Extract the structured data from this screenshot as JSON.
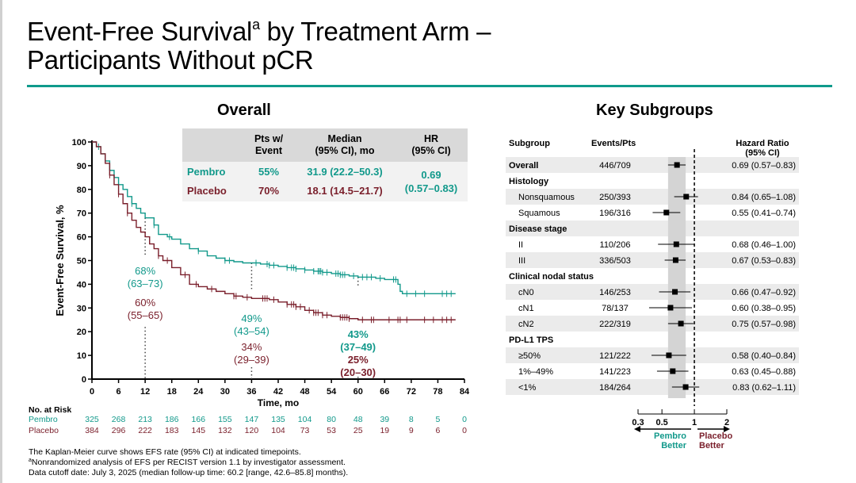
{
  "page": {
    "title_line1_pre": "Event-Free Survival",
    "title_sup": "a",
    "title_line1_post": " by Treatment Arm –",
    "title_line2": "Participants Without pCR",
    "colors": {
      "pembro": "#12998b",
      "placebo": "#7a1f2b",
      "rule": "#0f9a8c"
    }
  },
  "overall": {
    "section_title": "Overall",
    "table": {
      "headers": [
        "Pts w/\nEvent",
        "Median\n(95% CI), mo",
        "HR\n(95% CI)"
      ],
      "header_line1": [
        "Pts w/",
        "Median",
        "HR"
      ],
      "header_line2": [
        "Event",
        "(95% CI), mo",
        "(95% CI)"
      ],
      "rows": [
        {
          "arm": "Pembro",
          "pts_event": "55%",
          "median": "31.9 (22.2–50.3)"
        },
        {
          "arm": "Placebo",
          "pts_event": "70%",
          "median": "18.1 (14.5–21.7)"
        }
      ],
      "hr_value": "0.69",
      "hr_ci": "(0.57–0.83)"
    }
  },
  "chart_data": [
    {
      "type": "line",
      "title": "Overall",
      "xlabel": "Time, mo",
      "ylabel": "Event-Free Survival, %",
      "xlim": [
        0,
        84
      ],
      "ylim": [
        0,
        100
      ],
      "xticks": [
        0,
        6,
        12,
        18,
        24,
        30,
        36,
        42,
        48,
        54,
        60,
        66,
        72,
        78,
        84
      ],
      "yticks": [
        0,
        10,
        20,
        30,
        40,
        50,
        60,
        70,
        80,
        90,
        100
      ],
      "grid": false,
      "series": [
        {
          "name": "Pembro",
          "color": "#12998b",
          "x": [
            0,
            1,
            2,
            3,
            4,
            5,
            6,
            7,
            8,
            9,
            10,
            11,
            12,
            14,
            15,
            17,
            18,
            20,
            22,
            24,
            26,
            28,
            30,
            32,
            34,
            36,
            38,
            40,
            42,
            44,
            46,
            48,
            50,
            52,
            54,
            56,
            58,
            60,
            62,
            64,
            66,
            68,
            69,
            69.5,
            70,
            72,
            76,
            80,
            82
          ],
          "y": [
            100,
            98,
            95,
            92,
            88,
            85,
            82,
            80,
            77,
            74,
            72,
            70,
            68,
            65,
            61,
            60,
            59,
            57,
            55,
            54,
            52,
            51,
            50,
            49.5,
            49,
            49,
            48.5,
            48,
            47.5,
            47,
            46.5,
            46,
            45.5,
            45,
            44.5,
            44,
            43.5,
            43,
            43,
            42.5,
            42,
            42,
            40,
            37,
            36,
            36,
            36,
            36,
            36
          ]
        },
        {
          "name": "Placebo",
          "color": "#7a1f2b",
          "x": [
            0,
            1,
            2,
            3,
            4,
            5,
            6,
            7,
            8,
            9,
            10,
            11,
            12,
            13,
            14,
            15,
            16,
            18,
            20,
            22,
            24,
            26,
            28,
            30,
            32,
            34,
            36,
            38,
            40,
            42,
            44,
            46,
            48,
            50,
            52,
            54,
            56,
            58,
            60,
            64,
            70,
            76,
            82
          ],
          "y": [
            100,
            98,
            95,
            91,
            86,
            82,
            78,
            74,
            70,
            67,
            64,
            62,
            60,
            57,
            55,
            52,
            50,
            47,
            44,
            40,
            39,
            38,
            37,
            36,
            35,
            34.5,
            34,
            34,
            33.5,
            32.5,
            31.5,
            30.5,
            29,
            28,
            27,
            26.5,
            26,
            25.5,
            25,
            25,
            25,
            25,
            25
          ]
        }
      ],
      "annotations": [
        {
          "x": 12,
          "pembro_label": "68%",
          "pembro_ci": "(63–73)",
          "placebo_label": "60%",
          "placebo_ci": "(55–65)"
        },
        {
          "x": 36,
          "pembro_label": "49%",
          "pembro_ci": "(43–54)",
          "placebo_label": "34%",
          "placebo_ci": "(29–39)"
        },
        {
          "x": 60,
          "pembro_label": "43%",
          "pembro_ci": "(37–49)",
          "placebo_label": "25%",
          "placebo_ci": "(20–30)"
        }
      ],
      "number_at_risk": {
        "label": "No. at Risk",
        "times": [
          0,
          6,
          12,
          18,
          24,
          30,
          36,
          42,
          48,
          54,
          60,
          66,
          72,
          78,
          84
        ],
        "Pembro": [
          325,
          268,
          213,
          186,
          166,
          155,
          147,
          135,
          104,
          80,
          48,
          39,
          8,
          5,
          0
        ],
        "Placebo": [
          384,
          296,
          222,
          183,
          145,
          132,
          120,
          104,
          73,
          53,
          25,
          19,
          9,
          6,
          0
        ]
      }
    },
    {
      "type": "forest",
      "title": "Key Subgroups",
      "columns": [
        "Subgroup",
        "Events/Pts",
        "Hazard Ratio\n(95% CI)"
      ],
      "col_hr_line1": "Hazard Ratio",
      "col_hr_line2": "(95% CI)",
      "xscale": "log",
      "xticks": [
        "0.3",
        "0.5",
        "1",
        "2"
      ],
      "xlim": [
        0.3,
        2
      ],
      "reference_line": 1,
      "overall_ci_band": [
        0.57,
        0.83
      ],
      "left_arrow_label": [
        "Pembro",
        "Better"
      ],
      "right_arrow_label": [
        "Placebo",
        "Better"
      ],
      "rows": [
        {
          "label": "Overall",
          "type": "overall",
          "events": "446/709",
          "hr": 0.69,
          "lo": 0.57,
          "hi": 0.83,
          "text": "0.69 (0.57–0.83)"
        },
        {
          "label": "Histology",
          "type": "header"
        },
        {
          "label": "Nonsquamous",
          "type": "sub",
          "events": "250/393",
          "hr": 0.84,
          "lo": 0.65,
          "hi": 1.08,
          "text": "0.84 (0.65–1.08)"
        },
        {
          "label": "Squamous",
          "type": "sub",
          "events": "196/316",
          "hr": 0.55,
          "lo": 0.41,
          "hi": 0.74,
          "text": "0.55 (0.41–0.74)"
        },
        {
          "label": "Disease stage",
          "type": "header"
        },
        {
          "label": "II",
          "type": "sub",
          "events": "110/206",
          "hr": 0.68,
          "lo": 0.46,
          "hi": 1.0,
          "text": "0.68 (0.46–1.00)"
        },
        {
          "label": "III",
          "type": "sub",
          "events": "336/503",
          "hr": 0.67,
          "lo": 0.53,
          "hi": 0.83,
          "text": "0.67 (0.53–0.83)"
        },
        {
          "label": "Clinical nodal status",
          "type": "header"
        },
        {
          "label": "cN0",
          "type": "sub",
          "events": "146/253",
          "hr": 0.66,
          "lo": 0.47,
          "hi": 0.92,
          "text": "0.66 (0.47–0.92)"
        },
        {
          "label": "cN1",
          "type": "sub",
          "events": "78/137",
          "hr": 0.6,
          "lo": 0.38,
          "hi": 0.95,
          "text": "0.60 (0.38–0.95)"
        },
        {
          "label": "cN2",
          "type": "sub",
          "events": "222/319",
          "hr": 0.75,
          "lo": 0.57,
          "hi": 0.98,
          "text": "0.75 (0.57–0.98)"
        },
        {
          "label": "PD-L1 TPS",
          "type": "header"
        },
        {
          "label": "≥50%",
          "type": "sub",
          "events": "121/222",
          "hr": 0.58,
          "lo": 0.4,
          "hi": 0.84,
          "text": "0.58 (0.40–0.84)"
        },
        {
          "label": "1%–49%",
          "type": "sub",
          "events": "141/223",
          "hr": 0.63,
          "lo": 0.45,
          "hi": 0.88,
          "text": "0.63 (0.45–0.88)"
        },
        {
          "label": "<1%",
          "type": "sub",
          "events": "184/264",
          "hr": 0.83,
          "lo": 0.62,
          "hi": 1.11,
          "text": "0.83 (0.62–1.11)"
        }
      ]
    }
  ],
  "footnotes": {
    "line1": "The Kaplan-Meier curve shows EFS rate (95% CI) at indicated timepoints.",
    "line2_sup": "a",
    "line2": "Nonrandomized analysis of EFS per RECIST version 1.1 by investigator assessment.",
    "line3": "Data cutoff date: July 3, 2025 (median follow-up time: 60.2 [range, 42.6–85.8] months)."
  }
}
